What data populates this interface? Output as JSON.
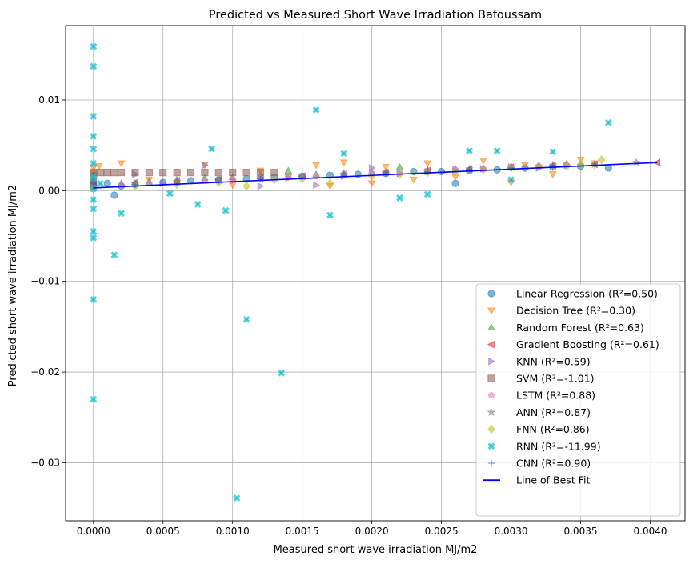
{
  "chart_data": {
    "type": "scatter",
    "title": "Predicted vs Measured Short Wave Irradiation Bafoussam",
    "xlabel": "Measured short wave irradiation MJ/m2",
    "ylabel": "Predicted short wave irradiation MJ/m2",
    "xlim": [
      -0.0002,
      0.00425
    ],
    "ylim": [
      -0.0364,
      0.0182
    ],
    "xticks": [
      0,
      0.0005,
      0.001,
      0.0015,
      0.002,
      0.0025,
      0.003,
      0.0035,
      0.004
    ],
    "xtick_labels": [
      "0.0000",
      "0.0005",
      "0.0010",
      "0.0015",
      "0.0020",
      "0.0025",
      "0.0030",
      "0.0035",
      "0.0040"
    ],
    "yticks": [
      -0.03,
      -0.02,
      -0.01,
      0.0,
      0.01
    ],
    "ytick_labels": [
      "−0.03",
      "−0.02",
      "−0.01",
      "0.00",
      "0.01"
    ],
    "grid": true,
    "legend_position": "lower-right",
    "series": [
      {
        "name": "Linear Regression (R²=0.50)",
        "marker": "circle",
        "color": "#1f77b4",
        "points": [
          [
            0,
            0.0004
          ],
          [
            0,
            0.0006
          ],
          [
            0,
            0.0008
          ],
          [
            0,
            0.001
          ],
          [
            0.0001,
            0.0008
          ],
          [
            0.0002,
            0.0005
          ],
          [
            0.0003,
            0.0007
          ],
          [
            0.0005,
            0.0009
          ],
          [
            0.0007,
            0.0011
          ],
          [
            0.0009,
            0.0012
          ],
          [
            0.0011,
            0.0013
          ],
          [
            0.0013,
            0.0015
          ],
          [
            0.0015,
            0.0016
          ],
          [
            0.0017,
            0.0017
          ],
          [
            0.0019,
            0.0018
          ],
          [
            0.0021,
            0.0019
          ],
          [
            0.0023,
            0.0021
          ],
          [
            0.0025,
            0.0021
          ],
          [
            0.0026,
            0.0008
          ],
          [
            0.0027,
            0.0022
          ],
          [
            0.0029,
            0.0023
          ],
          [
            0.0031,
            0.0025
          ],
          [
            0.0033,
            0.0026
          ],
          [
            0.0035,
            0.0027
          ],
          [
            0.0037,
            0.0025
          ],
          [
            0.00015,
            -0.0005
          ]
        ]
      },
      {
        "name": "Decision Tree (R²=0.30)",
        "marker": "triangle-down",
        "color": "#ff7f0e",
        "points": [
          [
            0,
            0.002
          ],
          [
            0,
            0.0025
          ],
          [
            4e-05,
            0.0027
          ],
          [
            0.0002,
            0.003
          ],
          [
            0.0004,
            0.0012
          ],
          [
            0.0006,
            0.0009
          ],
          [
            0.0008,
            0.0028
          ],
          [
            0.001,
            0.0006
          ],
          [
            0.0012,
            0.0022
          ],
          [
            0.0014,
            0.0015
          ],
          [
            0.0016,
            0.0028
          ],
          [
            0.0017,
            0.0005
          ],
          [
            0.0018,
            0.0031
          ],
          [
            0.002,
            0.0008
          ],
          [
            0.0021,
            0.0026
          ],
          [
            0.0023,
            0.0012
          ],
          [
            0.0024,
            0.003
          ],
          [
            0.0026,
            0.0015
          ],
          [
            0.0028,
            0.0033
          ],
          [
            0.003,
            0.0009
          ],
          [
            0.0031,
            0.0028
          ],
          [
            0.0033,
            0.0018
          ],
          [
            0.0035,
            0.0034
          ],
          [
            0.0036,
            0.003
          ]
        ]
      },
      {
        "name": "Random Forest (R²=0.63)",
        "marker": "triangle-up",
        "color": "#2ca02c",
        "points": [
          [
            0,
            0.0005
          ],
          [
            0.0002,
            0.0008
          ],
          [
            0.0004,
            0.001
          ],
          [
            0.0006,
            0.0012
          ],
          [
            0.0008,
            0.0014
          ],
          [
            0.001,
            0.0015
          ],
          [
            0.0012,
            0.0016
          ],
          [
            0.0014,
            0.0022
          ],
          [
            0.0016,
            0.0018
          ],
          [
            0.0018,
            0.0019
          ],
          [
            0.002,
            0.002
          ],
          [
            0.0022,
            0.0026
          ],
          [
            0.0024,
            0.0023
          ],
          [
            0.0026,
            0.0024
          ],
          [
            0.0028,
            0.0025
          ],
          [
            0.003,
            0.0027
          ],
          [
            0.0032,
            0.0028
          ],
          [
            0.0034,
            0.003
          ]
        ]
      },
      {
        "name": "Gradient Boosting (R²=0.61)",
        "marker": "triangle-left",
        "color": "#d62728",
        "points": [
          [
            0,
            0.0006
          ],
          [
            0.0003,
            0.0009
          ],
          [
            0.0006,
            0.0011
          ],
          [
            0.0009,
            0.0012
          ],
          [
            0.0012,
            0.0014
          ],
          [
            0.0015,
            0.0016
          ],
          [
            0.0018,
            0.0018
          ],
          [
            0.0021,
            0.002
          ],
          [
            0.0024,
            0.0022
          ],
          [
            0.0027,
            0.0024
          ],
          [
            0.003,
            0.0026
          ],
          [
            0.0033,
            0.0028
          ],
          [
            0.0036,
            0.0029
          ],
          [
            0.00405,
            0.0031
          ]
        ]
      },
      {
        "name": "KNN (R²=0.59)",
        "marker": "triangle-right",
        "color": "#9467bd",
        "points": [
          [
            0,
            0.0004
          ],
          [
            0.0003,
            0.0018
          ],
          [
            0.0005,
            0.0008
          ],
          [
            0.0008,
            0.0028
          ],
          [
            0.001,
            0.0011
          ],
          [
            0.0012,
            0.0005
          ],
          [
            0.0014,
            0.0014
          ],
          [
            0.0016,
            0.0006
          ],
          [
            0.0018,
            0.0016
          ],
          [
            0.002,
            0.0025
          ],
          [
            0.0022,
            0.0019
          ],
          [
            0.0024,
            0.0021
          ],
          [
            0.0026,
            0.0023
          ],
          [
            0.0028,
            0.0024
          ],
          [
            0.003,
            0.0026
          ],
          [
            0.0032,
            0.0025
          ],
          [
            0.0034,
            0.0028
          ]
        ]
      },
      {
        "name": "SVM (R²=-1.01)",
        "marker": "square",
        "color": "#8c564b",
        "points": [
          [
            0,
            0.0016
          ],
          [
            0,
            0.002
          ],
          [
            5e-05,
            0.002
          ],
          [
            0.0001,
            0.002
          ],
          [
            0.00015,
            0.002
          ],
          [
            0.0002,
            0.002
          ],
          [
            0.0003,
            0.002
          ],
          [
            0.0004,
            0.002
          ],
          [
            0.0005,
            0.002
          ],
          [
            0.0006,
            0.002
          ],
          [
            0.0007,
            0.002
          ],
          [
            0.0008,
            0.002
          ],
          [
            0.0009,
            0.002
          ],
          [
            0.001,
            0.002
          ],
          [
            0.0011,
            0.002
          ],
          [
            0.0012,
            0.002
          ],
          [
            0.0013,
            0.002
          ]
        ]
      },
      {
        "name": "LSTM (R²=0.88)",
        "marker": "pentagon",
        "color": "#e377c2",
        "points": [
          [
            0,
            0.0003
          ],
          [
            0.0002,
            0.0006
          ],
          [
            0.0004,
            0.0008
          ],
          [
            0.0006,
            0.001
          ],
          [
            0.0008,
            0.0011
          ],
          [
            0.001,
            0.0012
          ],
          [
            0.0012,
            0.0014
          ],
          [
            0.0014,
            0.0015
          ],
          [
            0.0016,
            0.0016
          ],
          [
            0.0018,
            0.0018
          ],
          [
            0.002,
            0.0019
          ],
          [
            0.0022,
            0.002
          ],
          [
            0.0024,
            0.0022
          ],
          [
            0.0026,
            0.0023
          ],
          [
            0.0028,
            0.0024
          ],
          [
            0.003,
            0.0026
          ],
          [
            0.0032,
            0.0027
          ],
          [
            0.0034,
            0.0028
          ]
        ]
      },
      {
        "name": "ANN (R²=0.87)",
        "marker": "star",
        "color": "#7f7f7f",
        "points": [
          [
            0,
            0.0005
          ],
          [
            0.0003,
            0.0008
          ],
          [
            0.0006,
            0.001
          ],
          [
            0.0009,
            0.0012
          ],
          [
            0.0012,
            0.0014
          ],
          [
            0.0015,
            0.0016
          ],
          [
            0.0018,
            0.0018
          ],
          [
            0.0021,
            0.002
          ],
          [
            0.0024,
            0.0022
          ],
          [
            0.0027,
            0.0024
          ],
          [
            0.003,
            0.0026
          ],
          [
            0.0033,
            0.0028
          ],
          [
            0.0036,
            0.0029
          ],
          [
            0.0039,
            0.0031
          ]
        ]
      },
      {
        "name": "FNN (R²=0.86)",
        "marker": "diamond",
        "color": "#bcbd22",
        "points": [
          [
            0,
            0.0002
          ],
          [
            0.0003,
            0.0005
          ],
          [
            0.0006,
            0.0007
          ],
          [
            0.0009,
            0.0009
          ],
          [
            0.0011,
            0.0005
          ],
          [
            0.0013,
            0.0012
          ],
          [
            0.0015,
            0.0013
          ],
          [
            0.0017,
            0.0008
          ],
          [
            0.002,
            0.0016
          ],
          [
            0.0022,
            0.0018
          ],
          [
            0.0024,
            0.002
          ],
          [
            0.0026,
            0.0021
          ],
          [
            0.0028,
            0.0023
          ],
          [
            0.003,
            0.0025
          ],
          [
            0.0032,
            0.0026
          ],
          [
            0.0034,
            0.0027
          ],
          [
            0.0035,
            0.0029
          ],
          [
            0.00365,
            0.0034
          ]
        ]
      },
      {
        "name": "RNN (R²=-11.99)",
        "marker": "x-filled",
        "color": "#17becf",
        "points": [
          [
            0,
            0.0159
          ],
          [
            0,
            0.0137
          ],
          [
            0,
            0.0082
          ],
          [
            0,
            0.006
          ],
          [
            0,
            0.0046
          ],
          [
            0,
            0.003
          ],
          [
            0,
            0.0015
          ],
          [
            0,
            0.0002
          ],
          [
            0,
            -0.001
          ],
          [
            0,
            -0.002
          ],
          [
            0,
            -0.0045
          ],
          [
            0,
            -0.0052
          ],
          [
            0,
            -0.012
          ],
          [
            0,
            -0.023
          ],
          [
            5e-05,
            0.0008
          ],
          [
            0.00015,
            -0.0071
          ],
          [
            0.0002,
            -0.0025
          ],
          [
            0.00055,
            -0.0003
          ],
          [
            0.00075,
            -0.0015
          ],
          [
            0.00085,
            0.0046
          ],
          [
            0.00095,
            -0.0022
          ],
          [
            0.00103,
            -0.0339
          ],
          [
            0.0011,
            -0.0142
          ],
          [
            0.00135,
            -0.0201
          ],
          [
            0.0016,
            0.0089
          ],
          [
            0.0017,
            -0.0027
          ],
          [
            0.0018,
            0.0041
          ],
          [
            0.0022,
            -0.0008
          ],
          [
            0.0024,
            -0.0004
          ],
          [
            0.0027,
            0.0044
          ],
          [
            0.0029,
            0.0044
          ],
          [
            0.0033,
            0.0043
          ],
          [
            0.0037,
            0.0075
          ],
          [
            0.003,
            0.0012
          ]
        ]
      },
      {
        "name": "CNN (R²=0.90)",
        "marker": "plus",
        "color": "#1f77b4",
        "points": [
          [
            0,
            0.0005
          ],
          [
            0.0003,
            0.0007
          ],
          [
            0.0006,
            0.0009
          ],
          [
            0.0009,
            0.0011
          ],
          [
            0.0012,
            0.0013
          ],
          [
            0.0015,
            0.0015
          ],
          [
            0.0018,
            0.0017
          ],
          [
            0.0021,
            0.0019
          ],
          [
            0.0024,
            0.0021
          ],
          [
            0.0027,
            0.0023
          ],
          [
            0.003,
            0.0025
          ],
          [
            0.0033,
            0.0027
          ],
          [
            0.0036,
            0.0028
          ]
        ]
      }
    ],
    "fit_line": {
      "name": "Line of Best Fit",
      "color": "#0000ff",
      "x": [
        0,
        0.00405
      ],
      "y": [
        0.0003,
        0.0031
      ]
    }
  }
}
